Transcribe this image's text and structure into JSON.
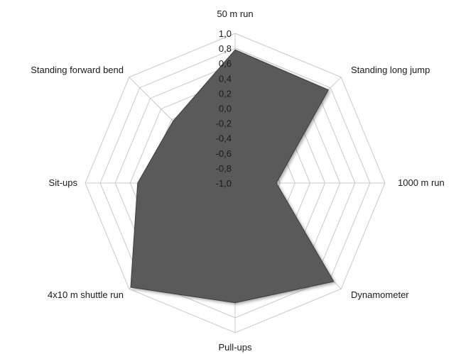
{
  "chart_data": {
    "type": "radar",
    "title": "",
    "categories": [
      "50 m run",
      "Standing long jump",
      "1000 m run",
      "Dynamometer",
      "Pull-ups",
      "4x10 m shuttle run",
      "Sit-ups",
      "Standing forward bend"
    ],
    "series": [
      {
        "values": [
          0.78,
          0.76,
          -0.45,
          0.86,
          0.6,
          0.97,
          0.3,
          0.17
        ],
        "color": "#5a5a5a"
      }
    ],
    "rlim": [
      -1.0,
      1.0
    ],
    "ticks": [
      "1,0",
      "0,8",
      "0,6",
      "0,4",
      "0,2",
      "0,0",
      "-0,2",
      "-0,4",
      "-0,6",
      "-0,8",
      "-1,0"
    ],
    "grid": true,
    "legend": "none"
  }
}
